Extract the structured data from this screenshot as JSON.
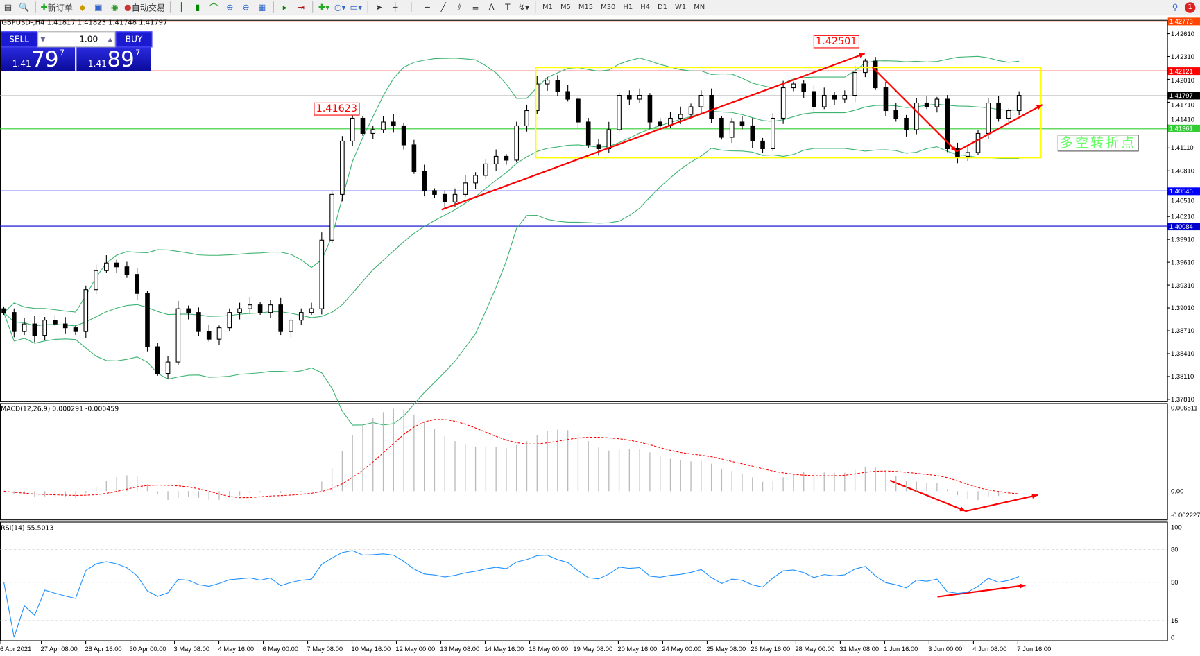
{
  "toolbar": {
    "new_order": "新订单",
    "auto_trading": "自动交易",
    "timeframes": [
      "M1",
      "M5",
      "M15",
      "M30",
      "H1",
      "H4",
      "D1",
      "W1",
      "MN"
    ],
    "notification_count": "1"
  },
  "chart": {
    "title": "GBPUSD-,H4  1.41817 1.41823 1.41748 1.41797",
    "macd_label": "MACD(12,26,9) 0.000291 -0.000459",
    "rsi_label": "RSI(14) 55.5013"
  },
  "trade_panel": {
    "sell": "SELL",
    "buy": "BUY",
    "lot": "1.00",
    "bid": {
      "big": "1.41",
      "mid": "79",
      "small": "7"
    },
    "ask": {
      "big": "1.41",
      "mid": "89",
      "small": "7"
    }
  },
  "price_axis": [
    "1.42610",
    "1.42310",
    "1.42010",
    "1.41710",
    "1.41410",
    "1.41110",
    "1.40810",
    "1.40510",
    "1.40210",
    "1.39910",
    "1.39610",
    "1.39310",
    "1.39010",
    "1.38710",
    "1.38410",
    "1.38110",
    "1.37810"
  ],
  "price_tags": [
    {
      "value": "1.42773",
      "color": "#ff4500"
    },
    {
      "value": "1.42121",
      "color": "#ff0000"
    },
    {
      "value": "1.41797",
      "color": "#000000"
    },
    {
      "value": "1.41361",
      "color": "#32cd32"
    },
    {
      "value": "1.40546",
      "color": "#0000ff"
    },
    {
      "value": "1.40084",
      "color": "#0000cd"
    }
  ],
  "macd_axis": [
    "0.006811",
    "0.00",
    "-0.002227"
  ],
  "rsi_axis": [
    "100",
    "80",
    "50",
    "15",
    "0"
  ],
  "time_axis": [
    "6 Apr 2021",
    "27 Apr 08:00",
    "28 Apr 16:00",
    "30 Apr 00:00",
    "3 May 08:00",
    "4 May 16:00",
    "6 May 00:00",
    "7 May 08:00",
    "10 May 16:00",
    "12 May 00:00",
    "13 May 08:00",
    "14 May 16:00",
    "18 May 00:00",
    "19 May 08:00",
    "20 May 16:00",
    "24 May 00:00",
    "25 May 08:00",
    "26 May 16:00",
    "28 May 00:00",
    "31 May 08:00",
    "1 Jun 16:00",
    "3 Jun 00:00",
    "4 Jun 08:00",
    "7 Jun 16:00"
  ],
  "annotations": {
    "high1": "1.41623",
    "high2": "1.42501",
    "reversal": "多空转折点"
  },
  "chart_data": {
    "type": "candlestick",
    "symbol": "GBPUSD-",
    "timeframe": "H4",
    "ylim": [
      1.3781,
      1.4277
    ],
    "closes": [
      1.3895,
      1.387,
      1.388,
      1.3865,
      1.3885,
      1.388,
      1.3875,
      1.387,
      1.3925,
      1.395,
      1.396,
      1.3955,
      1.3945,
      1.392,
      1.385,
      1.3815,
      1.383,
      1.39,
      1.3895,
      1.387,
      1.386,
      1.3875,
      1.3895,
      1.39,
      1.3905,
      1.3895,
      1.3905,
      1.387,
      1.3885,
      1.3895,
      1.39,
      1.399,
      1.405,
      1.412,
      1.415,
      1.413,
      1.4135,
      1.4145,
      1.414,
      1.4115,
      1.408,
      1.4055,
      1.405,
      1.404,
      1.405,
      1.4065,
      1.4075,
      1.409,
      1.41,
      1.4095,
      1.414,
      1.416,
      1.4195,
      1.42,
      1.4185,
      1.4175,
      1.4145,
      1.4115,
      1.411,
      1.4135,
      1.418,
      1.4175,
      1.418,
      1.4145,
      1.414,
      1.415,
      1.4155,
      1.4165,
      1.418,
      1.415,
      1.4125,
      1.4145,
      1.414,
      1.412,
      1.411,
      1.415,
      1.419,
      1.4195,
      1.4185,
      1.4165,
      1.418,
      1.4175,
      1.418,
      1.421,
      1.4225,
      1.419,
      1.416,
      1.415,
      1.4135,
      1.417,
      1.4165,
      1.4175,
      1.411,
      1.41,
      1.4105,
      1.413,
      1.417,
      1.415,
      1.416,
      1.418
    ],
    "indicators": [
      "Bollinger Bands(20)",
      "MACD(12,26,9)",
      "RSI(14)"
    ],
    "colors": {
      "bands": "#3cb371",
      "macd_signal": "#ff0000",
      "rsi": "#1e90ff",
      "box": "#ffff00",
      "arrows": "#ff0000"
    }
  }
}
